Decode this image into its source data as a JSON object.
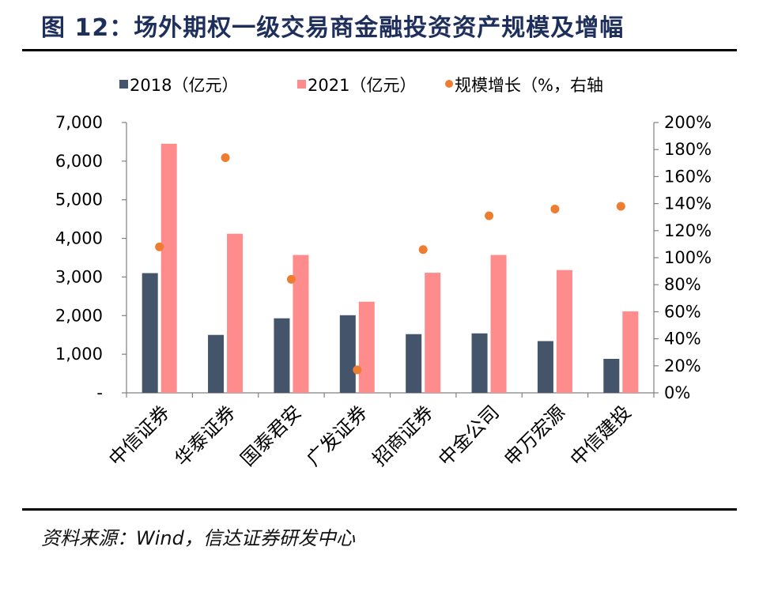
{
  "figure": {
    "title": "图 12：场外期权一级交易商金融投资资产规模及增幅",
    "source": "资料来源：Wind，信达证券研发中心"
  },
  "chart_data": {
    "type": "bar",
    "categories": [
      "中信证券",
      "华泰证券",
      "国泰君安",
      "广发证券",
      "招商证券",
      "中金公司",
      "申万宏源",
      "中信建投"
    ],
    "series": [
      {
        "name": "2018（亿元）",
        "type": "bar",
        "axis": "left",
        "color": "#44546a",
        "values": [
          3100,
          1500,
          1930,
          2010,
          1520,
          1540,
          1340,
          880
        ]
      },
      {
        "name": "2021（亿元）",
        "type": "bar",
        "axis": "left",
        "color": "#ff8c8c",
        "values": [
          6450,
          4120,
          3570,
          2360,
          3110,
          3570,
          3180,
          2110
        ]
      },
      {
        "name": "规模增长（%，右轴",
        "type": "scatter",
        "axis": "right",
        "color": "#ed7d31",
        "values": [
          108,
          174,
          84,
          17,
          106,
          131,
          136,
          138
        ]
      }
    ],
    "y_left": {
      "range": [
        0,
        7000
      ],
      "ticks": [
        0,
        1000,
        2000,
        3000,
        4000,
        5000,
        6000,
        7000
      ],
      "tick_labels": [
        "-",
        "1,000",
        "2,000",
        "3,000",
        "4,000",
        "5,000",
        "6,000",
        "7,000"
      ]
    },
    "y_right": {
      "range": [
        0,
        200
      ],
      "ticks": [
        0,
        20,
        40,
        60,
        80,
        100,
        120,
        140,
        160,
        180,
        200
      ],
      "tick_labels": [
        "0%",
        "20%",
        "40%",
        "60%",
        "80%",
        "100%",
        "120%",
        "140%",
        "160%",
        "180%",
        "200%"
      ]
    },
    "legend_position": "top",
    "grid": false
  }
}
